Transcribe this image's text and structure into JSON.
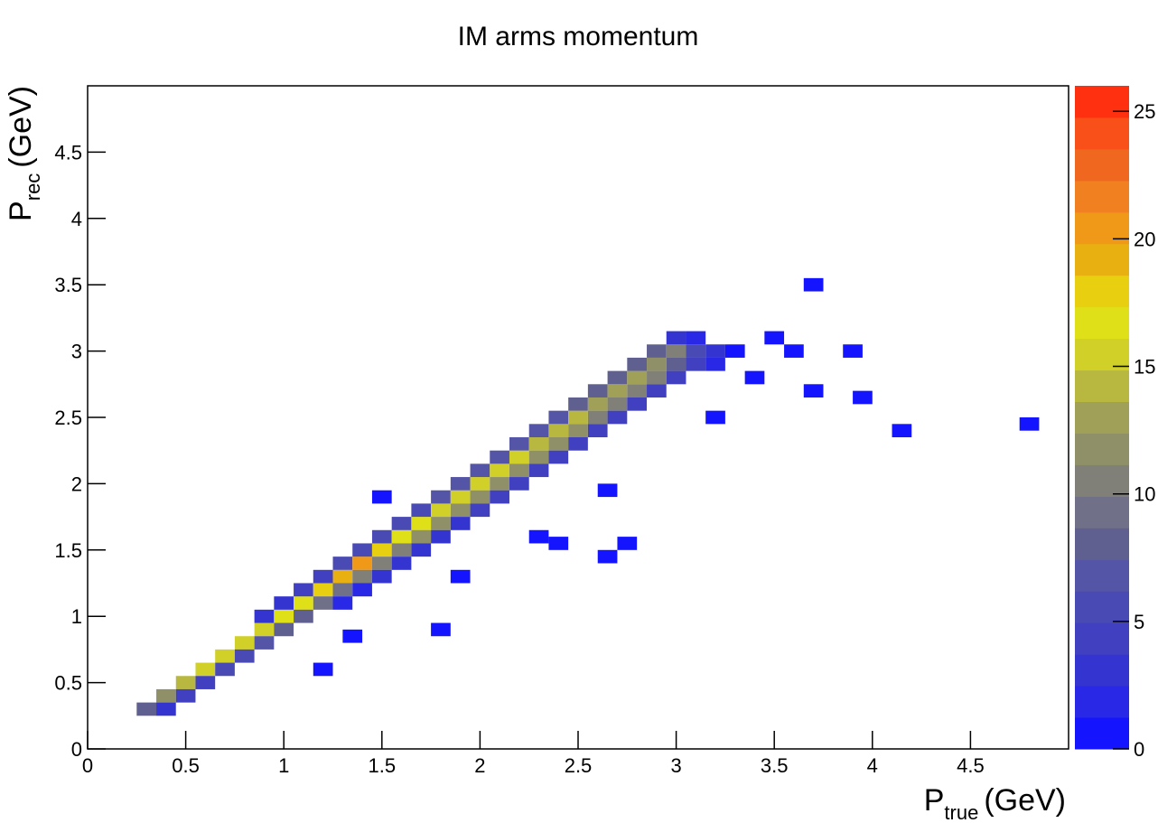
{
  "chart_data": {
    "type": "heatmap2d",
    "title": "IM arms momentum",
    "x_label": {
      "main": "P",
      "sub": "true",
      "unit": "(GeV)"
    },
    "y_label": {
      "main": "P",
      "sub": "rec",
      "unit": "(GeV)"
    },
    "xlim": [
      0,
      5
    ],
    "ylim": [
      0,
      5
    ],
    "zlim": [
      0,
      26
    ],
    "xticks": [
      0,
      0.5,
      1,
      1.5,
      2,
      2.5,
      3,
      3.5,
      4,
      4.5
    ],
    "yticks": [
      0,
      0.5,
      1,
      1.5,
      2,
      2.5,
      3,
      3.5,
      4,
      4.5
    ],
    "zticks": [
      0,
      5,
      10,
      15,
      20,
      25
    ],
    "palette": [
      "#1414ff",
      "#2828e6",
      "#3434d0",
      "#4040c0",
      "#4a4ab4",
      "#5555a8",
      "#606090",
      "#707088",
      "#808078",
      "#909068",
      "#a0a058",
      "#b8b840",
      "#d0d028",
      "#e0e018",
      "#e8d010",
      "#e8b010",
      "#f09818",
      "#f08020",
      "#f06820",
      "#f85018",
      "#ff3010"
    ],
    "x": [
      0.3,
      0.4,
      0.4,
      0.5,
      0.5,
      0.6,
      0.6,
      0.7,
      0.7,
      0.8,
      0.8,
      0.9,
      0.9,
      0.9,
      1,
      1,
      1,
      1.1,
      1.1,
      1.1,
      1.2,
      1.2,
      1.2,
      1.3,
      1.3,
      1.3,
      1.3,
      1.4,
      1.4,
      1.4,
      1.4,
      1.5,
      1.5,
      1.5,
      1.5,
      1.6,
      1.6,
      1.6,
      1.6,
      1.7,
      1.7,
      1.7,
      1.7,
      1.8,
      1.8,
      1.8,
      1.8,
      1.9,
      1.9,
      1.9,
      1.9,
      2,
      2,
      2,
      2,
      2.1,
      2.1,
      2.1,
      2.1,
      2.2,
      2.2,
      2.2,
      2.2,
      2.3,
      2.3,
      2.3,
      2.3,
      2.4,
      2.4,
      2.4,
      2.4,
      2.5,
      2.5,
      2.5,
      2.5,
      2.6,
      2.6,
      2.6,
      2.6,
      2.7,
      2.7,
      2.7,
      2.7,
      2.8,
      2.8,
      2.8,
      2.8,
      2.9,
      2.9,
      2.9,
      2.9,
      3,
      3,
      3,
      3,
      3.1,
      3.1,
      3.1,
      3.2,
      3.2,
      3.3,
      3.7,
      3.5,
      3.6,
      3.9,
      3.7,
      3.4,
      3.95,
      4.15,
      4.8,
      2.65,
      2.75,
      2.65,
      2.4,
      2.3,
      1.9,
      1.5,
      1.8,
      1.2,
      1.35,
      3.2
    ],
    "y": [
      0.3,
      0.4,
      0.3,
      0.5,
      0.4,
      0.6,
      0.5,
      0.7,
      0.6,
      0.8,
      0.7,
      0.9,
      0.8,
      1,
      1,
      0.9,
      1.1,
      1.1,
      1,
      1.2,
      1.2,
      1.1,
      1.3,
      1.3,
      1.2,
      1.4,
      1.1,
      1.4,
      1.3,
      1.5,
      1.2,
      1.5,
      1.4,
      1.6,
      1.3,
      1.6,
      1.5,
      1.7,
      1.4,
      1.7,
      1.6,
      1.8,
      1.5,
      1.8,
      1.7,
      1.9,
      1.6,
      1.9,
      1.8,
      2,
      1.7,
      2,
      1.9,
      2.1,
      1.8,
      2.1,
      2,
      2.2,
      1.9,
      2.2,
      2.1,
      2.3,
      2,
      2.3,
      2.2,
      2.4,
      2.1,
      2.4,
      2.3,
      2.5,
      2.2,
      2.5,
      2.4,
      2.6,
      2.3,
      2.6,
      2.5,
      2.7,
      2.4,
      2.7,
      2.6,
      2.8,
      2.5,
      2.8,
      2.7,
      2.9,
      2.6,
      2.9,
      2.8,
      3,
      2.7,
      3,
      2.9,
      2.8,
      3.1,
      3,
      2.9,
      3.1,
      3,
      2.9,
      3,
      3.5,
      3.1,
      3,
      3,
      2.7,
      2.8,
      2.65,
      2.4,
      2.45,
      1.95,
      1.55,
      1.45,
      1.55,
      1.6,
      1.3,
      1.9,
      0.9,
      0.6,
      0.85,
      2.5
    ],
    "values": [
      8,
      12,
      3,
      14,
      4,
      15,
      4,
      16,
      5,
      15,
      6,
      16,
      7,
      3,
      17,
      8,
      3,
      17,
      8,
      4,
      18,
      9,
      4,
      19,
      9,
      5,
      2,
      20,
      10,
      5,
      2,
      18,
      11,
      6,
      3,
      17,
      11,
      6,
      3,
      17,
      12,
      6,
      3,
      16,
      12,
      7,
      3,
      16,
      12,
      7,
      3,
      16,
      12,
      7,
      4,
      15,
      12,
      7,
      4,
      15,
      12,
      7,
      4,
      14,
      12,
      7,
      4,
      14,
      12,
      7,
      4,
      14,
      12,
      8,
      4,
      13,
      11,
      8,
      4,
      13,
      11,
      8,
      4,
      13,
      11,
      8,
      4,
      12,
      10,
      8,
      4,
      10,
      8,
      4,
      3,
      6,
      4,
      2,
      3,
      2,
      1,
      1,
      1,
      1,
      1,
      1,
      1,
      1,
      1,
      1,
      1,
      1,
      1,
      1,
      1,
      1,
      1,
      1,
      1,
      1,
      1
    ]
  }
}
